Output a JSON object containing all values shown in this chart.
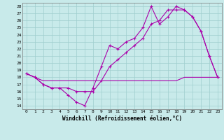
{
  "xlabel": "Windchill (Refroidissement éolien,°C)",
  "xlim": [
    -0.5,
    23.5
  ],
  "ylim": [
    13.5,
    28.5
  ],
  "yticks": [
    14,
    15,
    16,
    17,
    18,
    19,
    20,
    21,
    22,
    23,
    24,
    25,
    26,
    27,
    28
  ],
  "xticks": [
    0,
    1,
    2,
    3,
    4,
    5,
    6,
    7,
    8,
    9,
    10,
    11,
    12,
    13,
    14,
    15,
    16,
    17,
    18,
    19,
    20,
    21,
    22,
    23
  ],
  "bg_color": "#c8eaea",
  "grid_color": "#9fcece",
  "line_color": "#aa00aa",
  "line1_x": [
    0,
    1,
    2,
    3,
    4,
    5,
    6,
    7,
    8,
    9,
    10,
    11,
    12,
    13,
    14,
    15,
    16,
    17,
    18,
    19,
    20,
    21,
    22,
    23
  ],
  "line1_y": [
    18.5,
    18.0,
    17.0,
    16.5,
    16.5,
    15.5,
    14.5,
    14.0,
    16.5,
    19.5,
    22.5,
    22.0,
    23.0,
    23.5,
    25.0,
    28.0,
    25.5,
    26.5,
    28.0,
    27.5,
    26.5,
    24.5,
    21.0,
    18.0
  ],
  "line2_x": [
    0,
    1,
    2,
    3,
    4,
    5,
    6,
    7,
    8,
    9,
    10,
    11,
    12,
    13,
    14,
    15,
    16,
    17,
    18,
    19,
    20,
    21,
    22,
    23
  ],
  "line2_y": [
    18.5,
    18.0,
    17.0,
    16.5,
    16.5,
    16.5,
    16.0,
    16.0,
    16.0,
    17.5,
    19.5,
    20.5,
    21.5,
    22.5,
    23.5,
    25.5,
    26.0,
    27.5,
    27.5,
    27.5,
    26.5,
    24.5,
    21.0,
    18.0
  ],
  "line3_x": [
    0,
    2,
    9,
    10,
    11,
    12,
    13,
    14,
    15,
    16,
    17,
    18,
    19,
    20,
    23
  ],
  "line3_y": [
    18.5,
    17.5,
    17.5,
    17.5,
    17.5,
    17.5,
    17.5,
    17.5,
    17.5,
    17.5,
    17.5,
    17.5,
    18.0,
    18.0,
    18.0
  ]
}
